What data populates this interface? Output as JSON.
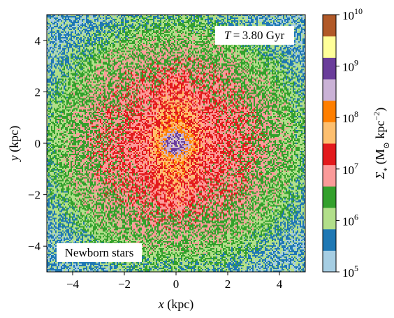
{
  "chart_data": {
    "type": "heatmap",
    "title": "",
    "xlabel_var": "x",
    "xlabel_unit": " (kpc)",
    "ylabel_var": "y",
    "ylabel_unit": " (kpc)",
    "xlim": [
      -5,
      5
    ],
    "ylim": [
      -5,
      5
    ],
    "xticks": [
      -4,
      -2,
      0,
      2,
      4
    ],
    "yticks": [
      -4,
      -2,
      0,
      2,
      4
    ],
    "xtick_labels": [
      "−4",
      "−2",
      "0",
      "2",
      "4"
    ],
    "ytick_labels": [
      "−4",
      "−2",
      "0",
      "2",
      "4"
    ],
    "annotation_time": {
      "var": "T",
      "eq": " = 3.80 Gyr"
    },
    "annotation_population": "Newborn stars",
    "colorbar": {
      "label_symbol": "Σ",
      "label_sub": "*",
      "label_unit_pre": " (M",
      "label_unit_sun": "⊙",
      "label_unit_post": " kpc",
      "label_unit_exp": "−2",
      "label_close": ")",
      "scale": "log",
      "range": [
        100000,
        10000000000
      ],
      "ticks": [
        {
          "value": 100000,
          "base": "10",
          "exp": "5"
        },
        {
          "value": 1000000,
          "base": "10",
          "exp": "6"
        },
        {
          "value": 10000000,
          "base": "10",
          "exp": "7"
        },
        {
          "value": 100000000,
          "base": "10",
          "exp": "8"
        },
        {
          "value": 1000000000,
          "base": "10",
          "exp": "9"
        },
        {
          "value": 10000000000,
          "base": "10",
          "exp": "10"
        }
      ],
      "colors": [
        "#a6cee3",
        "#1f78b4",
        "#b2df8a",
        "#33a02c",
        "#fb9a99",
        "#e31a1c",
        "#fdbf6f",
        "#ff7f00",
        "#cab2d6",
        "#6a3d9a",
        "#ffff99",
        "#b15928"
      ]
    },
    "density_model": {
      "components": [
        {
          "amp": 9.0,
          "sx": 0.32,
          "sy": 0.32
        },
        {
          "amp": 8.1,
          "sx": 0.62,
          "sy": 0.5
        },
        {
          "amp": 7.75,
          "sx": 0.75,
          "sy": 1.6
        },
        {
          "amp": 7.2,
          "sx": 2.5,
          "sy": 2.4
        }
      ],
      "background_log": 5.6,
      "noise": 0.45
    }
  }
}
